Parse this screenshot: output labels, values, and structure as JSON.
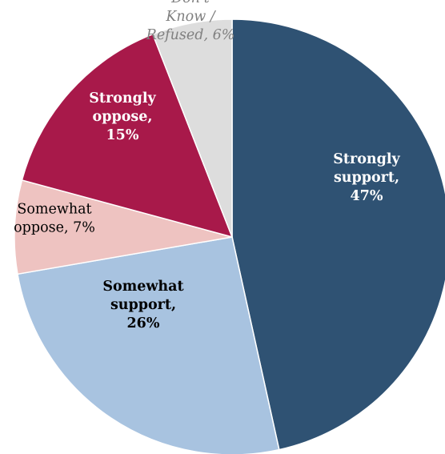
{
  "chart_data": {
    "type": "pie",
    "title": "",
    "slices": [
      {
        "name": "Strongly support",
        "value": 47,
        "label_lines": [
          "Strongly",
          "support,",
          "47%"
        ],
        "color": "#2F5273",
        "label_color": "#FFFFFF",
        "label_weight": "bold",
        "label_style": "normal"
      },
      {
        "name": "Somewhat support",
        "value": 26,
        "label_lines": [
          "Somewhat",
          "support,",
          "26%"
        ],
        "color": "#A8C3E0",
        "label_color": "#000000",
        "label_weight": "bold",
        "label_style": "normal"
      },
      {
        "name": "Somewhat oppose",
        "value": 7,
        "label_lines": [
          "Somewhat",
          "oppose, 7%"
        ],
        "color": "#EEC3C1",
        "label_color": "#000000",
        "label_weight": "normal",
        "label_style": "normal"
      },
      {
        "name": "Strongly oppose",
        "value": 15,
        "label_lines": [
          "Strongly",
          "oppose,",
          "15%"
        ],
        "color": "#A8194A",
        "label_color": "#FFFFFF",
        "label_weight": "bold",
        "label_style": "normal"
      },
      {
        "name": "Don't Know / Refused",
        "value": 6,
        "label_lines": [
          "Don't",
          "Know /",
          "Refused, 6%"
        ],
        "color": "#DDDDDD",
        "label_color": "#808080",
        "label_weight": "normal",
        "label_style": "italic"
      }
    ]
  }
}
